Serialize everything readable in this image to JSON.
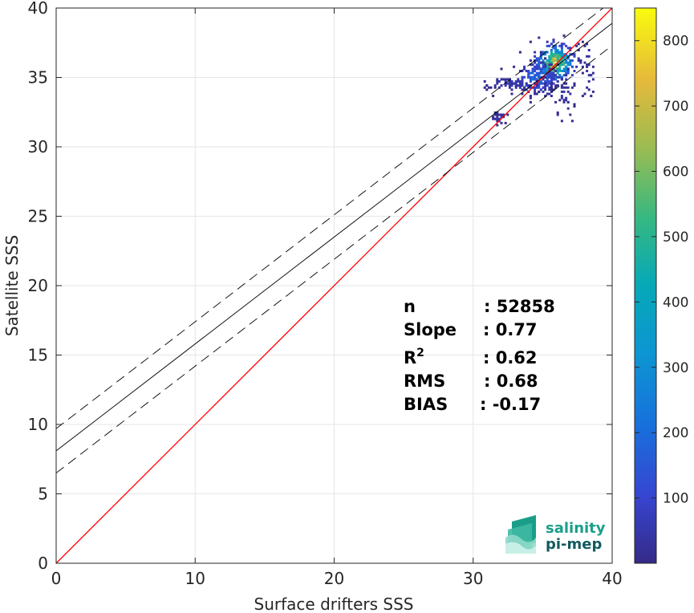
{
  "chart_data": {
    "type": "heatmap",
    "xlabel": "Surface drifters SSS",
    "ylabel": "Satellite SSS",
    "xlim": [
      0,
      40
    ],
    "ylim": [
      0,
      40
    ],
    "xticks": [
      "0",
      "10",
      "20",
      "30",
      "40"
    ],
    "yticks": [
      "0",
      "5",
      "10",
      "15",
      "20",
      "25",
      "30",
      "35",
      "40"
    ],
    "grid": true,
    "colorbar": {
      "range": [
        0,
        850
      ],
      "ticks": [
        "100",
        "200",
        "300",
        "400",
        "500",
        "600",
        "700",
        "800"
      ],
      "colormap": "parula"
    },
    "lines": [
      {
        "role": "identity",
        "color": "#ff0000",
        "slope": 1.0,
        "intercept": 0.0,
        "style": "solid"
      },
      {
        "role": "regression",
        "color": "#000000",
        "slope": 0.77,
        "intercept": 8.1,
        "style": "solid"
      },
      {
        "role": "regression-upper",
        "color": "#000000",
        "slope": 0.77,
        "intercept": 9.7,
        "style": "dashed"
      },
      {
        "role": "regression-lower",
        "color": "#000000",
        "slope": 0.77,
        "intercept": 6.5,
        "style": "dashed"
      }
    ],
    "density_clusters": [
      {
        "x": 35.8,
        "y": 36.0,
        "sx": 0.7,
        "sy": 0.7,
        "peak": 850,
        "n": 320
      },
      {
        "x": 34.5,
        "y": 34.9,
        "sx": 0.9,
        "sy": 0.6,
        "peak": 250,
        "n": 200
      },
      {
        "x": 32.8,
        "y": 34.5,
        "sx": 1.3,
        "sy": 0.25,
        "peak": 80,
        "n": 70
      },
      {
        "x": 31.8,
        "y": 32.0,
        "sx": 0.4,
        "sy": 0.2,
        "peak": 60,
        "n": 25
      },
      {
        "x": 36.5,
        "y": 33.5,
        "sx": 0.4,
        "sy": 0.9,
        "peak": 60,
        "n": 30
      },
      {
        "x": 38.2,
        "y": 35.5,
        "sx": 0.3,
        "sy": 1.2,
        "peak": 50,
        "n": 25
      }
    ],
    "stats": [
      {
        "label": "n",
        "sup": "",
        "value": ": 52858"
      },
      {
        "label": "Slope",
        "sup": "",
        "value": ": 0.77"
      },
      {
        "label": "R",
        "sup": "2",
        "value": ": 0.62"
      },
      {
        "label": "RMS",
        "sup": "",
        "value": ": 0.68"
      },
      {
        "label": "BIAS",
        "sup": "",
        "value": ": -0.17"
      }
    ]
  },
  "logo": {
    "line1": "salinity",
    "line2": "pi-mep"
  },
  "colors": {
    "identity": "#ff0000",
    "grid": "#e6e6e6",
    "axis": "#262626",
    "logo_teal": "#1a9e8a",
    "logo_dark": "#135a5e"
  }
}
